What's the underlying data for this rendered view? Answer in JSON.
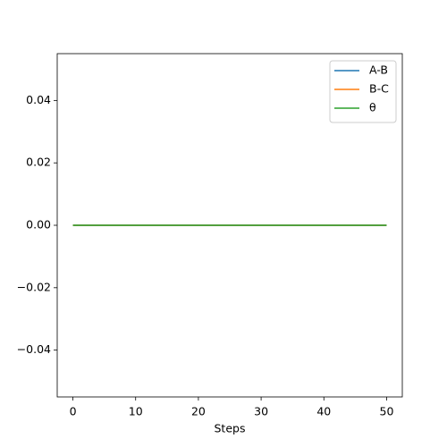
{
  "chart_data": {
    "type": "line",
    "x_label": "Steps",
    "x": [
      0,
      5,
      10,
      15,
      20,
      25,
      30,
      35,
      40,
      45,
      50
    ],
    "series": [
      {
        "name": "A-B",
        "color": "#1f77b4",
        "values": [
          0,
          0,
          0,
          0,
          0,
          0,
          0,
          0,
          0,
          0,
          0
        ]
      },
      {
        "name": "B-C",
        "color": "#ff7f0e",
        "values": [
          0,
          0,
          0,
          0,
          0,
          0,
          0,
          0,
          0,
          0,
          0
        ]
      },
      {
        "name": "θ",
        "color": "#2ca02c",
        "values": [
          0,
          0,
          0,
          0,
          0,
          0,
          0,
          0,
          0,
          0,
          0
        ]
      }
    ],
    "xlim": [
      -2.5,
      52.5
    ],
    "xticks": [
      0,
      10,
      20,
      30,
      40,
      50
    ],
    "ylim": [
      -0.055,
      0.055
    ],
    "yticks": [
      {
        "value": -0.04,
        "label": "−0.04"
      },
      {
        "value": -0.02,
        "label": "−0.02"
      },
      {
        "value": 0,
        "label": "0.00"
      },
      {
        "value": 0.02,
        "label": "0.02"
      },
      {
        "value": 0.04,
        "label": "0.04"
      }
    ],
    "legend": "upper right",
    "grid": false
  }
}
